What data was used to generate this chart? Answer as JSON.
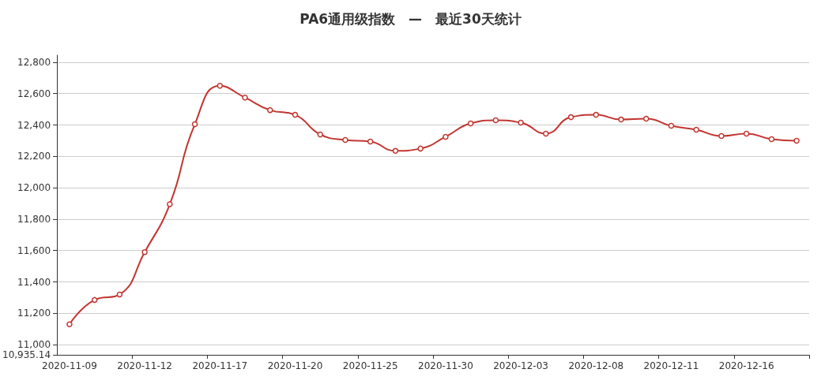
{
  "chart_data": {
    "type": "line",
    "title": "PA6通用级指数　—　最近30天统计",
    "categories": [
      "2020-11-09",
      null,
      null,
      "2020-11-12",
      null,
      null,
      "2020-11-17",
      null,
      null,
      "2020-11-20",
      null,
      null,
      "2020-11-25",
      null,
      null,
      "2020-11-30",
      null,
      null,
      "2020-12-03",
      null,
      null,
      "2020-12-08",
      null,
      null,
      "2020-12-11",
      null,
      null,
      "2020-12-16",
      null,
      null
    ],
    "series": [
      {
        "color": "#c23531",
        "values": [
          11130,
          11285,
          11320,
          11590,
          11895,
          12405,
          12650,
          12575,
          12495,
          12465,
          12340,
          12305,
          12295,
          12235,
          12250,
          12325,
          12410,
          12430,
          12415,
          12345,
          12450,
          12465,
          12435,
          12440,
          12395,
          12370,
          12330,
          12345,
          12310,
          12300
        ]
      }
    ],
    "ylim": [
      10935.14,
      12845
    ],
    "yticks": [
      {
        "value": 10935.14,
        "label": "10,935.14"
      },
      {
        "value": 11000,
        "label": "11,000"
      },
      {
        "value": 11200,
        "label": "11,200"
      },
      {
        "value": 11400,
        "label": "11,400"
      },
      {
        "value": 11600,
        "label": "11,600"
      },
      {
        "value": 11800,
        "label": "11,800"
      },
      {
        "value": 12000,
        "label": "12,000"
      },
      {
        "value": 12200,
        "label": "12,200"
      },
      {
        "value": 12400,
        "label": "12,400"
      },
      {
        "value": 12600,
        "label": "12,600"
      },
      {
        "value": 12800,
        "label": "12,800"
      }
    ],
    "grid": "y",
    "marker": "circle",
    "line_style": "solid"
  }
}
